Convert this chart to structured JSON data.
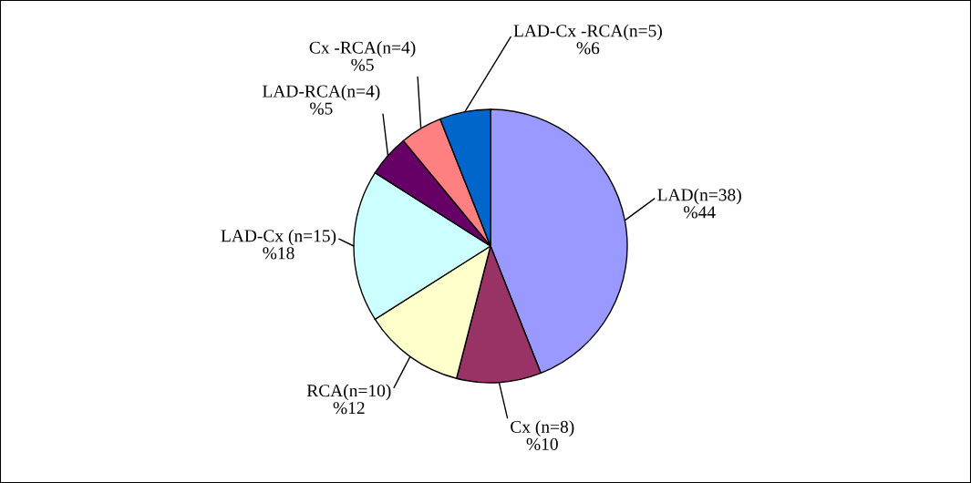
{
  "chart_data": {
    "type": "pie",
    "categories": [
      "LAD(n=38)",
      "Cx (n=8)",
      "RCA(n=10)",
      "LAD-Cx (n=15)",
      "LAD-RCA(n=4)",
      "Cx -RCA(n=4)",
      "LAD-Cx -RCA(n=5)"
    ],
    "values": [
      44,
      10,
      12,
      18,
      5,
      5,
      6
    ],
    "value_labels": [
      "%44",
      "%10",
      "%12",
      "%18",
      "%5",
      "%5",
      "%6"
    ],
    "colors": [
      "#9999ff",
      "#993366",
      "#ffffcc",
      "#ccffff",
      "#660066",
      "#ff8080",
      "#0066cc"
    ]
  }
}
